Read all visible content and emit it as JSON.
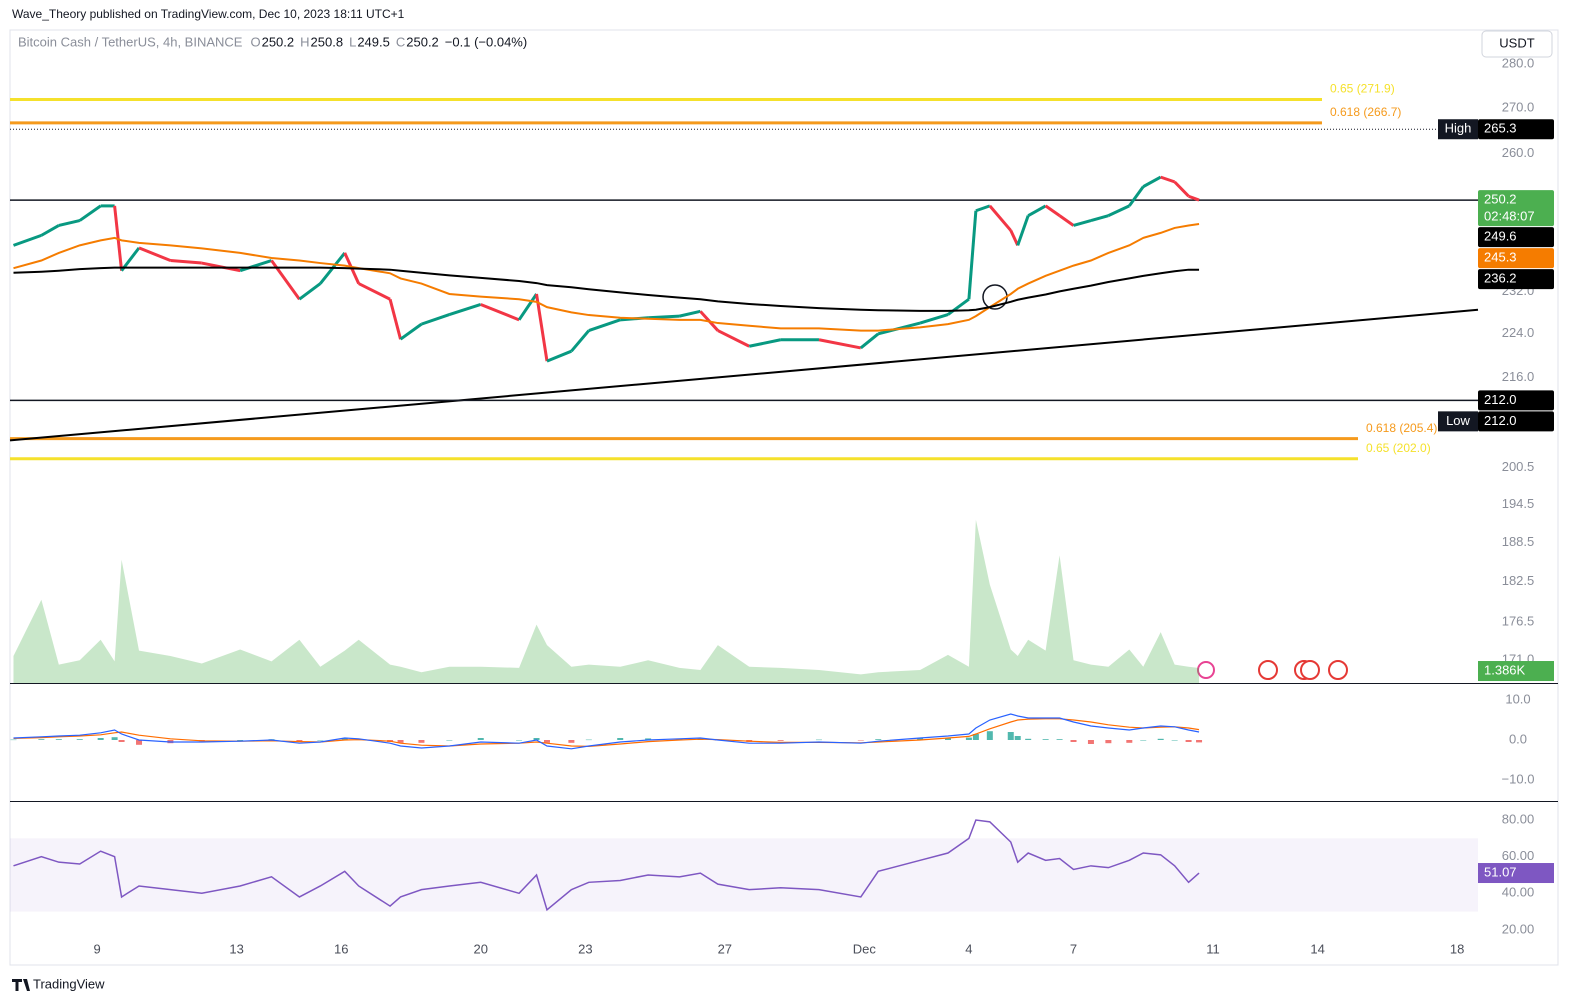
{
  "header": {
    "byline": "Wave_Theory published on TradingView.com, Dec 10, 2023 18:11 UTC+1",
    "currency": "USDT",
    "brand": "TradingView"
  },
  "legend": {
    "symbol": "Bitcoin Cash / TetherUS, 4h, BINANCE",
    "ohlc": [
      {
        "key": "O",
        "value": 250.2
      },
      {
        "key": "H",
        "value": 250.8
      },
      {
        "key": "L",
        "value": 249.5
      },
      {
        "key": "C",
        "value": 250.2
      }
    ],
    "change": "−0.1 (−0.04%)"
  },
  "chart_data": {
    "type": "candlestick",
    "x": [
      6.6,
      7.4,
      7.9,
      8.5,
      9.1,
      9.5,
      9.7,
      10.2,
      11.1,
      12.0,
      13.1,
      14.0,
      14.8,
      15.4,
      16.1,
      16.5,
      17.4,
      17.7,
      18.3,
      19.1,
      20.0,
      21.1,
      21.6,
      21.9,
      22.6,
      23.1,
      24.0,
      24.8,
      25.7,
      26.3,
      26.8,
      27.7,
      28.6,
      29.7,
      30.9,
      31.4,
      32.6,
      33.4,
      34.0,
      34.2,
      34.6,
      35.2,
      35.4,
      35.7,
      36.2,
      36.6,
      37.0,
      37.5,
      38.0,
      38.6,
      39.0,
      39.5,
      39.9,
      40.3,
      40.6
    ],
    "xlim": [
      6.5,
      48.6
    ],
    "xticks": [
      9,
      13,
      16,
      20,
      23,
      27,
      {
        "value": 31,
        "label": "Dec"
      },
      {
        "value": 34,
        "label": "4"
      },
      {
        "value": 37,
        "label": "7"
      },
      {
        "value": 41,
        "label": "11"
      },
      {
        "value": 44,
        "label": "14"
      },
      {
        "value": 48,
        "label": "18"
      }
    ],
    "ylim": [
      167.8,
      288
    ],
    "log_scale": true,
    "yticks": [
      {
        "value": 280,
        "label": "280.0"
      },
      {
        "value": 270,
        "label": "270.0"
      },
      {
        "value": 260,
        "label": "260.0"
      },
      {
        "value": 232,
        "label": "232.0"
      },
      {
        "value": 224,
        "label": "224.0"
      },
      {
        "value": 216,
        "label": "216.0"
      },
      {
        "value": 200.5,
        "label": "200.5"
      },
      {
        "value": 194.5,
        "label": "194.5"
      },
      {
        "value": 188.5,
        "label": "188.5"
      },
      {
        "value": 182.5,
        "label": "182.5"
      },
      {
        "value": 176.5,
        "label": "176.5"
      },
      {
        "value": 171,
        "label": "171.0"
      }
    ],
    "series": [
      {
        "values": [
          241,
          243,
          245,
          246,
          249,
          249,
          236,
          240.5,
          238,
          237.5,
          236,
          238,
          230.5,
          233.5,
          239.5,
          233.5,
          230.5,
          223,
          225.8,
          227.6,
          229.5,
          226.6,
          231.5,
          219,
          220.8,
          224.6,
          226.6,
          227,
          227.3,
          228.2,
          224.6,
          221.7,
          222.9,
          222.9,
          221.4,
          224,
          226,
          227.6,
          230.5,
          248,
          249,
          244,
          241,
          247,
          249,
          247,
          245,
          246,
          247,
          249,
          253,
          255,
          254,
          251,
          250.2
        ],
        "up_color": "#089981",
        "down_color": "#f23645"
      },
      {
        "values": [
          236.5,
          238,
          239.5,
          241,
          242,
          242.5,
          242,
          241.5,
          241,
          240.4,
          239.5,
          238.5,
          238,
          237.5,
          237,
          236.5,
          235.5,
          234.5,
          233.5,
          231.5,
          231,
          230.5,
          230,
          229,
          228,
          227.5,
          227,
          226.8,
          226.6,
          226.6,
          226,
          225.5,
          225,
          225,
          224.6,
          224.6,
          225.2,
          225.8,
          226.6,
          227.3,
          229,
          231.5,
          232.5,
          233.5,
          235,
          236,
          237,
          238,
          239.5,
          241,
          242.5,
          243.5,
          244.5,
          245,
          245.3
        ],
        "color": "#f57c00"
      },
      {
        "values": [
          235.6,
          235.8,
          236,
          236.3,
          236.5,
          236.6,
          236.6,
          236.6,
          236.6,
          236.6,
          236.6,
          236.6,
          236.6,
          236.6,
          236.5,
          236.4,
          236.2,
          236,
          235.6,
          235.1,
          234.6,
          234,
          233.6,
          233.2,
          232.8,
          232.4,
          231.8,
          231.3,
          230.8,
          230.5,
          230.1,
          229.6,
          229.2,
          228.8,
          228.5,
          228.4,
          228.3,
          228.3,
          228.4,
          228.5,
          229,
          230,
          230.4,
          230.8,
          231.4,
          232,
          232.5,
          233.1,
          233.8,
          234.5,
          235,
          235.5,
          235.9,
          236.2,
          236.2
        ],
        "color": "#000000"
      }
    ],
    "trendline": {
      "x": [
        6.5,
        48.6
      ],
      "values": [
        205.1,
        228.5
      ],
      "color": "#000000"
    },
    "levels": [
      {
        "label": "0.65 (271.9)",
        "value": 271.9,
        "color": "#f5e12c"
      },
      {
        "label": "0.618 (266.7)",
        "value": 266.7,
        "color": "#f59a1c"
      },
      {
        "label": "0.618 (205.4)",
        "value": 205.4,
        "color": "#f59a1c"
      },
      {
        "label": "0.65 (202.0)",
        "value": 202.0,
        "color": "#f5e12c"
      }
    ],
    "price_labels": [
      {
        "label": "High",
        "value": 265.3,
        "color": "#000000",
        "line": "dotted"
      },
      {
        "value": 250.2,
        "sub": "02:48:07",
        "color": "#4caf50",
        "line": "solid"
      },
      {
        "value": 249.6,
        "color": "#000000"
      },
      {
        "value": 245.3,
        "color": "#f57c00"
      },
      {
        "value": 236.2,
        "color": "#000000"
      },
      {
        "value": 212,
        "value_label": "212.0",
        "color": "#000000",
        "line": "solid"
      },
      {
        "label": "Low",
        "value": 212,
        "value_label": "212.0",
        "color": "#000000"
      }
    ],
    "volume": {
      "values": [
        2.5,
        7.7,
        1.7,
        2.1,
        4.0,
        2.0,
        11.4,
        3.0,
        2.5,
        1.8,
        3.1,
        2.0,
        4.0,
        1.5,
        3.0,
        4.0,
        1.7,
        1.5,
        1.0,
        1.5,
        1.5,
        1.4,
        5.4,
        3.5,
        1.5,
        1.7,
        1.5,
        2.1,
        1.4,
        1.2,
        3.5,
        1.5,
        1.4,
        1.2,
        0.8,
        1.0,
        1.2,
        2.6,
        1.5,
        15.1,
        9.1,
        3.1,
        2.5,
        4.0,
        3.0,
        11.8,
        2.1,
        1.7,
        1.5,
        3.1,
        1.5,
        4.7,
        1.7,
        1.5,
        1.386
      ],
      "ylim": [
        0,
        16
      ],
      "value_label": "1.386K",
      "color": "#4caf50"
    },
    "macd": {
      "ylim": [
        -15,
        14
      ],
      "yticks": [
        {
          "value": 10,
          "label": "10.0"
        },
        {
          "value": 0,
          "label": "0.0"
        },
        {
          "value": -10,
          "label": "−10.0"
        }
      ],
      "macd": [
        0.5,
        0.8,
        1.0,
        1.2,
        1.8,
        2.5,
        1.5,
        0,
        -0.5,
        -0.5,
        -0.3,
        0,
        -0.8,
        -0.5,
        0.5,
        0.3,
        -0.8,
        -1.5,
        -2,
        -1.5,
        -0.5,
        -0.8,
        0,
        -1.5,
        -2.2,
        -1.5,
        -0.5,
        0,
        0.3,
        0.5,
        0,
        -0.8,
        -0.8,
        -0.5,
        -0.8,
        -0.3,
        0.5,
        1,
        1.5,
        3,
        5,
        6.5,
        6,
        5.5,
        5.5,
        5.5,
        4.5,
        3.5,
        3,
        2.5,
        3,
        3.5,
        3.3,
        2.5,
        2
      ],
      "signal": [
        0.4,
        0.6,
        0.8,
        1.0,
        1.3,
        1.8,
        2.0,
        1.2,
        0.3,
        -0.2,
        -0.3,
        -0.2,
        -0.4,
        -0.5,
        0,
        0.1,
        -0.3,
        -0.8,
        -1.3,
        -1.5,
        -1.0,
        -0.8,
        -0.5,
        -0.8,
        -1.5,
        -1.6,
        -1.0,
        -0.4,
        0,
        0.2,
        0.1,
        -0.3,
        -0.6,
        -0.6,
        -0.7,
        -0.5,
        0,
        0.5,
        0.9,
        1.5,
        2.8,
        4.5,
        5.0,
        5.2,
        5.3,
        5.3,
        5.0,
        4.5,
        3.8,
        3.2,
        3.0,
        3.2,
        3.3,
        3.0,
        2.6
      ],
      "histogram": [
        0.1,
        0.2,
        0.2,
        0.2,
        0.5,
        0.7,
        -0.5,
        -1.2,
        -0.8,
        -0.3,
        0,
        0.2,
        -0.4,
        0,
        0.5,
        0.2,
        -0.5,
        -0.7,
        -0.7,
        0,
        0.5,
        0,
        0.5,
        -0.7,
        -0.7,
        0.1,
        0.5,
        0.4,
        0.3,
        0.3,
        -0.1,
        -0.5,
        -0.2,
        0.1,
        -0.1,
        0.2,
        0.5,
        0.5,
        0.6,
        1.5,
        2.2,
        2.0,
        1.0,
        0.3,
        0.2,
        0.2,
        -0.5,
        -1.0,
        -0.8,
        -0.7,
        0,
        0.3,
        0,
        -0.5,
        -0.6
      ],
      "macd_color": "#2962ff",
      "signal_color": "#ff6d00",
      "up_color": "#26a69a",
      "down_color": "#ef5350"
    },
    "rsi": {
      "ylim": [
        14.5,
        89.3
      ],
      "yticks": [
        {
          "value": 80,
          "label": "80.00"
        },
        {
          "value": 60,
          "label": "60.00"
        },
        {
          "value": 40,
          "label": "40.00"
        },
        {
          "value": 20,
          "label": "20.00"
        }
      ],
      "band": [
        30,
        70
      ],
      "color": "#7e57c2",
      "values": [
        55,
        60,
        57,
        56,
        63,
        60,
        38,
        44,
        42,
        40,
        44,
        49,
        38,
        44,
        52,
        44,
        33,
        38,
        42,
        44,
        46,
        40,
        50,
        31,
        42,
        46,
        47,
        50,
        49,
        51,
        45,
        42,
        43,
        42,
        38,
        52,
        58,
        62,
        70,
        80,
        79,
        68,
        57,
        62,
        58,
        59,
        53,
        55,
        54,
        58,
        62,
        61,
        55,
        46,
        51.07
      ]
    }
  }
}
